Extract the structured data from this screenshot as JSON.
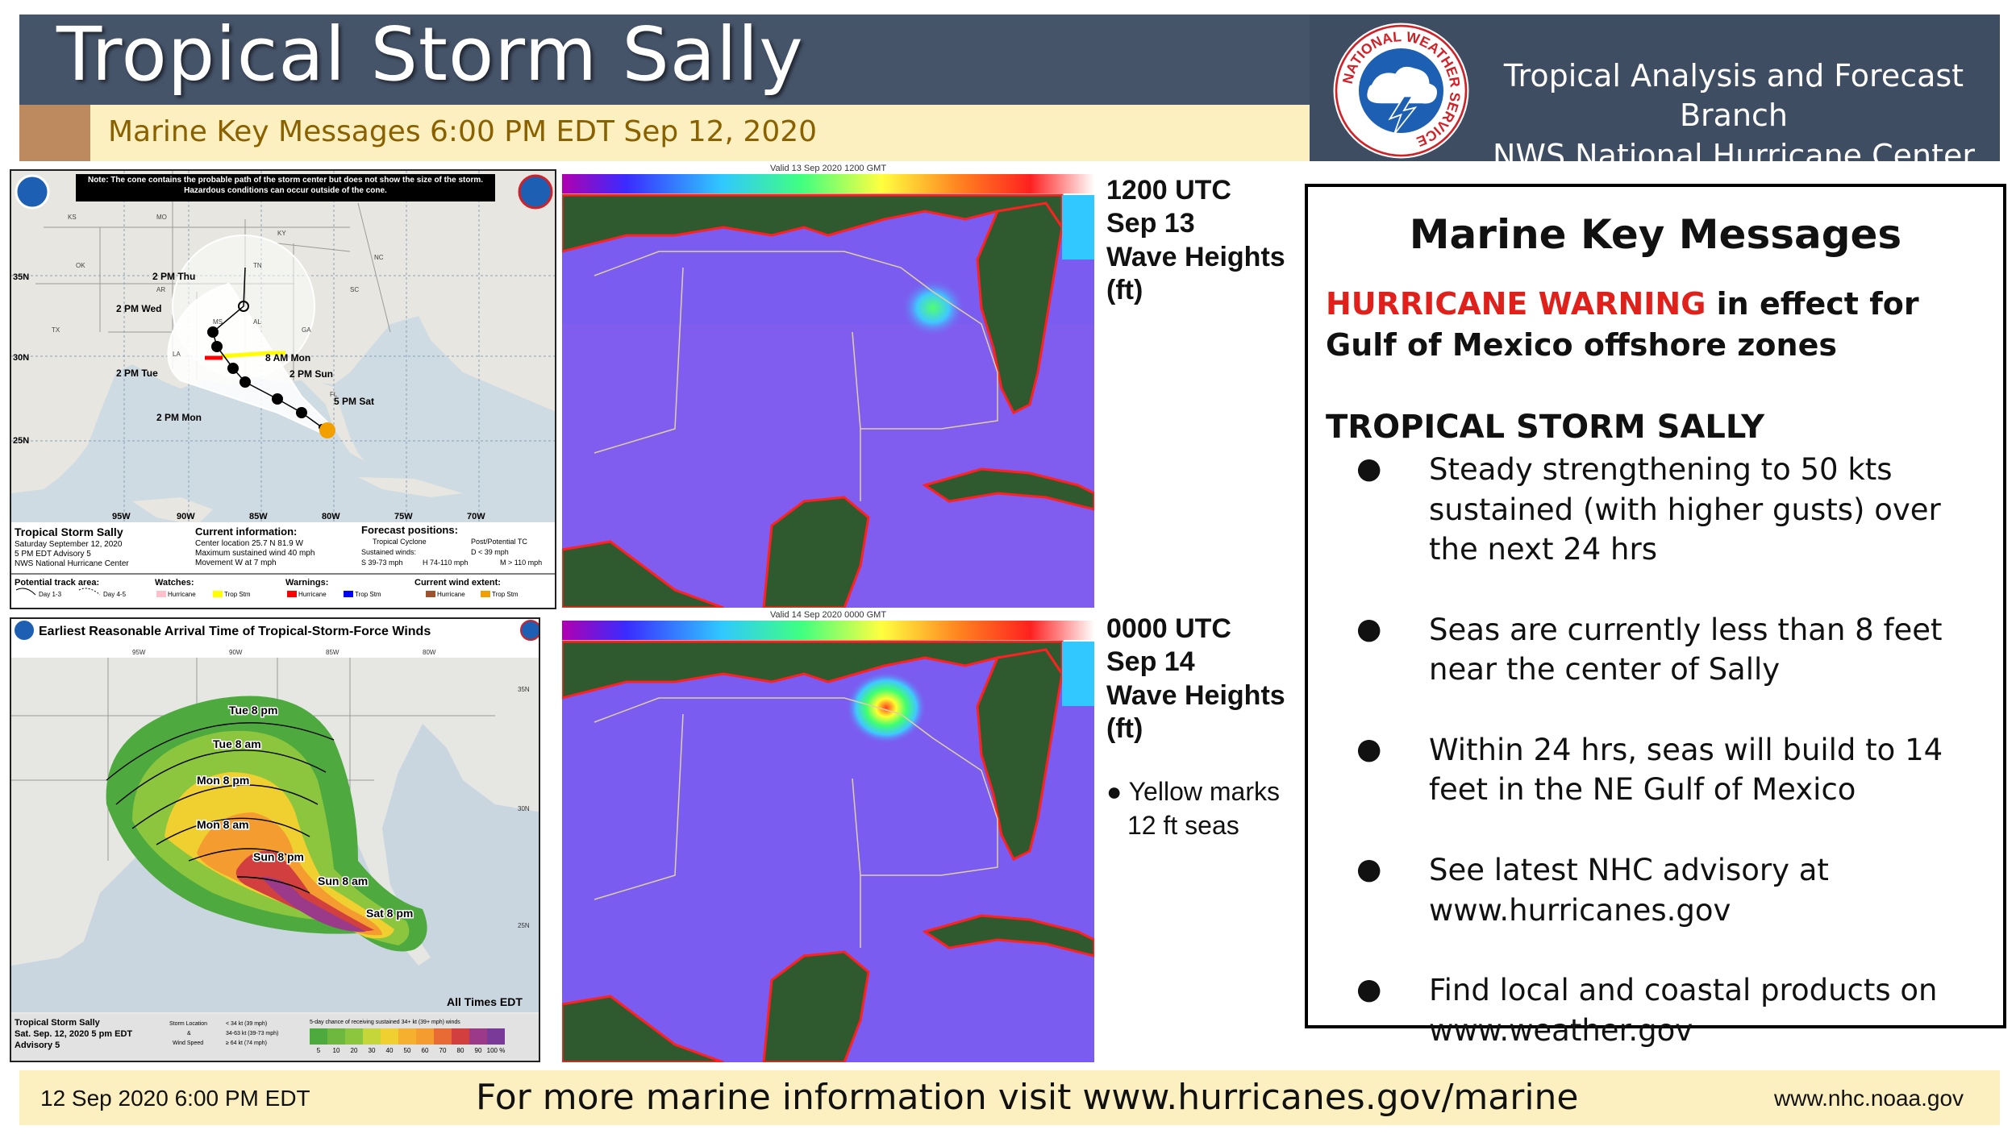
{
  "header": {
    "title": "Tropical Storm Sally",
    "subtitle": "Marine Key Messages 6:00 PM EDT Sep 12, 2020",
    "branch_line1": "Tropical Analysis and Forecast Branch",
    "branch_line2": "NWS National Hurricane Center",
    "logo_text": "NATIONAL WEATHER SERVICE"
  },
  "cone_map": {
    "note": "Note: The cone contains the probable path of the storm center but does not show the size of the storm. Hazardous conditions can occur outside of the cone.",
    "lat_labels": [
      "35N",
      "30N",
      "25N"
    ],
    "lon_labels": [
      "95W",
      "90W",
      "85W",
      "80W",
      "75W",
      "70W"
    ],
    "state_labels": [
      "KS",
      "MO",
      "KY",
      "OK",
      "AR",
      "TN",
      "NC",
      "SC",
      "TX",
      "MS",
      "AL",
      "GA",
      "LA",
      "FL"
    ],
    "forecast_points": [
      "2 PM Thu",
      "2 PM Wed",
      "8 AM Mon",
      "2 PM Tue",
      "2 PM Sun",
      "5 PM Sat",
      "2 PM Mon"
    ],
    "legend_title": "Tropical Storm Sally",
    "legend_date": "Saturday September 12, 2020",
    "legend_advisory": "5 PM EDT Advisory 5",
    "legend_source": "NWS National Hurricane Center",
    "current_info_title": "Current information:",
    "current_location": "Center location 25.7 N 81.9 W",
    "current_wind": "Maximum sustained wind 40 mph",
    "current_movement": "Movement W at 7 mph",
    "forecast_title": "Forecast positions:",
    "forecast_tc": "Tropical Cyclone",
    "forecast_post": "Post/Potential TC",
    "sustained_winds": "Sustained winds:",
    "wind_d": "D < 39 mph",
    "wind_s": "S 39-73 mph",
    "wind_h": "H 74-110 mph",
    "wind_m": "M > 110 mph",
    "track_area": "Potential track area:",
    "day13": "Day 1-3",
    "day45": "Day 4-5",
    "watches": "Watches:",
    "warnings": "Warnings:",
    "hurricane": "Hurricane",
    "trop_stm": "Trop Stm",
    "wind_extent": "Current wind extent:"
  },
  "arrival_map": {
    "title": "Earliest Reasonable Arrival Time of Tropical-Storm-Force Winds",
    "lon_labels": [
      "95W",
      "90W",
      "85W",
      "80W"
    ],
    "lat_labels": [
      "35N",
      "30N",
      "25N"
    ],
    "time_labels": [
      "Tue 8 pm",
      "Tue 8 am",
      "Mon 8 pm",
      "Mon 8 am",
      "Sun 8 pm",
      "Sun 8 am",
      "Sat 8 pm"
    ],
    "all_times": "All Times EDT",
    "legend_storm": "Tropical Storm Sally",
    "legend_date": "Sat. Sep. 12, 2020  5 pm EDT",
    "legend_advisory": "Advisory 5",
    "storm_location": "Storm Location",
    "amp": "&",
    "wind_speed": "Wind Speed",
    "ws1": "< 34 kt (39 mph)",
    "ws2": "34-63 kt (39-73 mph)",
    "ws3": "≥ 64 kt (74 mph)",
    "chance_title": "5-day chance of receiving sustained 34+ kt (39+ mph) winds",
    "scale": [
      "5",
      "10",
      "20",
      "30",
      "40",
      "50",
      "60",
      "70",
      "80",
      "90",
      "100 %"
    ]
  },
  "wave1": {
    "valid": "Valid 13 Sep 2020 1200 GMT",
    "caption": [
      "1200 UTC",
      "Sep 13",
      "Wave Heights",
      "(ft)"
    ]
  },
  "wave2": {
    "valid": "Valid 14 Sep 2020 0000 GMT",
    "caption": [
      "0000 UTC",
      "Sep 14",
      "Wave Heights",
      "(ft)"
    ]
  },
  "note": {
    "line1": "● Yellow marks",
    "line2": "12 ft seas"
  },
  "key_messages": {
    "title": "Marine Key Messages",
    "warning_red": "HURRICANE WARNING",
    "warning_rest": " in effect for Gulf of Mexico offshore zones",
    "storm_heading": "TROPICAL STORM SALLY",
    "bullets": [
      "Steady strengthening to 50 kts sustained (with higher gusts) over the next 24 hrs",
      "Seas are currently less than 8 feet near the center of Sally",
      "Within 24 hrs, seas will build to 14 feet in the NE Gulf of Mexico",
      "See latest NHC advisory at www.hurricanes.gov",
      "Find local and coastal products on www.weather.gov"
    ]
  },
  "footer": {
    "date": "12 Sep 2020 6:00 PM EDT",
    "main": "For more marine information visit www.hurricanes.gov/marine",
    "url": "www.nhc.noaa.gov"
  },
  "colors": {
    "header_bg": "#46546a",
    "sub_bg": "#fdf0c0",
    "warning_red": "#e0201a",
    "land": "#2f5a2f",
    "sea": "#7a5cf0"
  }
}
